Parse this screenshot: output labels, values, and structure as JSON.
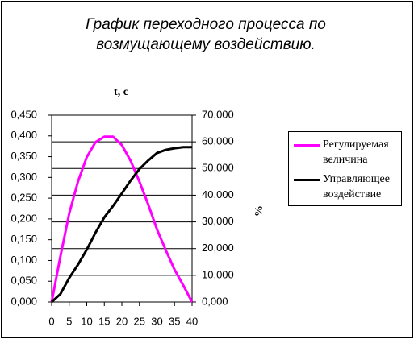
{
  "chart_data": {
    "type": "line",
    "title": "График переходного процесса по возмущающему воздействию.",
    "x_label": "t, c",
    "y2_label": "%",
    "x": [
      0,
      2.5,
      5,
      7.5,
      10,
      12.5,
      15,
      17.5,
      20,
      22.5,
      25,
      27.5,
      30,
      32.5,
      35,
      37.5,
      40
    ],
    "series": [
      {
        "name": "Регулируемая величина",
        "color": "#ff00ff",
        "axis": "y",
        "values": [
          0,
          0.11,
          0.213,
          0.29,
          0.349,
          0.385,
          0.398,
          0.398,
          0.378,
          0.34,
          0.29,
          0.235,
          0.175,
          0.125,
          0.078,
          0.04,
          0
        ]
      },
      {
        "name": "Управляющее воздействие",
        "color": "#000000",
        "axis": "y2",
        "values": [
          0,
          3,
          9,
          14,
          19.6,
          26,
          31.7,
          36,
          40.7,
          45.5,
          49.8,
          53,
          55.8,
          57,
          57.6,
          58,
          58
        ]
      }
    ],
    "xlim": [
      0,
      40
    ],
    "xticks": [
      0,
      5,
      10,
      15,
      20,
      25,
      30,
      35,
      40
    ],
    "ylim": [
      0,
      0.45
    ],
    "yticks": [
      {
        "value": 0,
        "label": "0,000"
      },
      {
        "value": 0.05,
        "label": "0,050"
      },
      {
        "value": 0.1,
        "label": "0,100"
      },
      {
        "value": 0.15,
        "label": "0,150"
      },
      {
        "value": 0.2,
        "label": "0,200"
      },
      {
        "value": 0.25,
        "label": "0,250"
      },
      {
        "value": 0.3,
        "label": "0,300"
      },
      {
        "value": 0.35,
        "label": "0,350"
      },
      {
        "value": 0.4,
        "label": "0,400"
      },
      {
        "value": 0.45,
        "label": "0,450"
      }
    ],
    "y2lim": [
      0,
      70
    ],
    "y2ticks": [
      {
        "value": 0,
        "label": "0,000"
      },
      {
        "value": 10,
        "label": "10,000"
      },
      {
        "value": 20,
        "label": "20,000"
      },
      {
        "value": 30,
        "label": "30,000"
      },
      {
        "value": 40,
        "label": "40,000"
      },
      {
        "value": 50,
        "label": "50,000"
      },
      {
        "value": 60,
        "label": "60,000"
      },
      {
        "value": 70,
        "label": "70,000"
      }
    ],
    "grid": true,
    "legend": "right"
  }
}
